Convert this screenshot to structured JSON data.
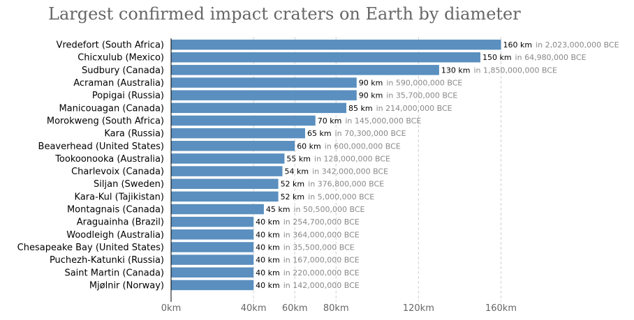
{
  "chart_data": {
    "type": "bar",
    "orientation": "horizontal",
    "title": "Largest confirmed impact craters on Earth by diameter",
    "xlabel": "",
    "ylabel": "",
    "xlim": [
      0,
      170
    ],
    "x_ticks": [
      0,
      40,
      60,
      80,
      120,
      160
    ],
    "x_tick_labels": [
      "0km",
      "40km",
      "60km",
      "80km",
      "120km",
      "160km"
    ],
    "grid": "vertical dashed",
    "legend": "none",
    "bar_color": "#5a8fbf",
    "categories": [
      "Vredefort (South Africa)",
      "Chicxulub (Mexico)",
      "Sudbury (Canada)",
      "Acraman (Australia)",
      "Popigai (Russia)",
      "Manicouagan (Canada)",
      "Morokweng (South Africa)",
      "Kara (Russia)",
      "Beaverhead (United States)",
      "Tookoonooka (Australia)",
      "Charlevoix (Canada)",
      "Siljan (Sweden)",
      "Kara-Kul (Tajikistan)",
      "Montagnais (Canada)",
      "Araguainha (Brazil)",
      "Woodleigh (Australia)",
      "Chesapeake Bay (United States)",
      "Puchezh-Katunki (Russia)",
      "Saint Martin (Canada)",
      "Mjølnir (Norway)"
    ],
    "values": [
      160,
      150,
      130,
      90,
      90,
      85,
      70,
      65,
      60,
      55,
      54,
      52,
      52,
      45,
      40,
      40,
      40,
      40,
      40,
      40
    ],
    "value_labels": [
      "160 km",
      "150 km",
      "130 km",
      "90 km",
      "90 km",
      "85 km",
      "70 km",
      "65 km",
      "60 km",
      "55 km",
      "54 km",
      "52 km",
      "52 km",
      "45 km",
      "40 km",
      "40 km",
      "40 km",
      "40 km",
      "40 km",
      "40 km"
    ],
    "age_labels": [
      "in 2,023,000,000 BCE",
      "in 64,980,000 BCE",
      "in 1,850,000,000 BCE",
      "in 590,000,000 BCE",
      "in 35,700,000 BCE",
      "in 214,000,000 BCE",
      "in 145,000,000 BCE",
      "in 70,300,000 BCE",
      "in 600,000,000 BCE",
      "in 128,000,000 BCE",
      "in 342,000,000 BCE",
      "in 376,800,000 BCE",
      "in 5,000,000 BCE",
      "in 50,500,000 BCE",
      "in 254,700,000 BCE",
      "in 364,000,000 BCE",
      "in 35,500,000 BCE",
      "in 167,000,000 BCE",
      "in 220,000,000 BCE",
      "in 142,000,000 BCE"
    ]
  }
}
